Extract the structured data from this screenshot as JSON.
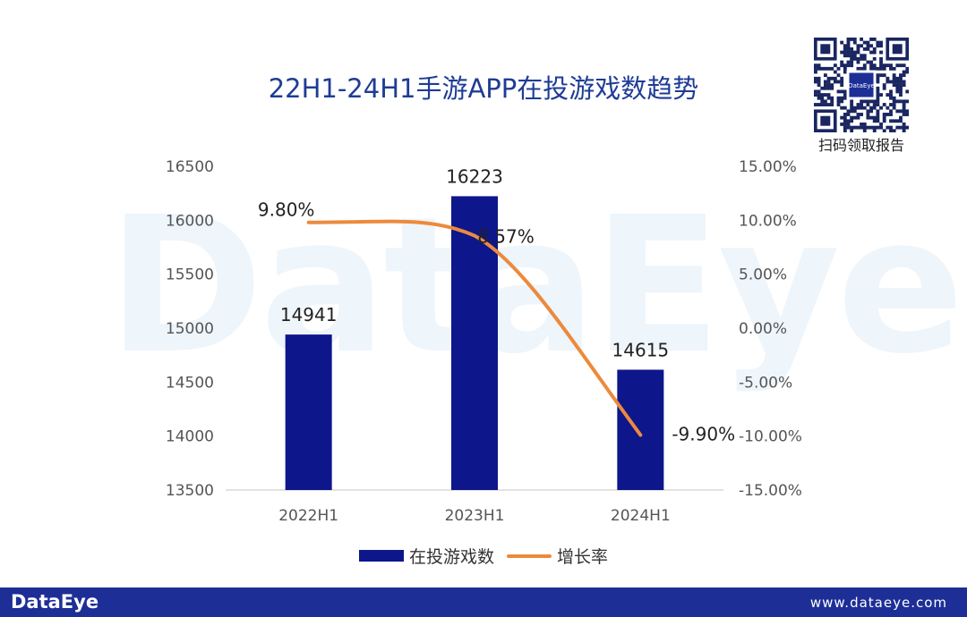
{
  "watermark": "DataEye",
  "qr": {
    "label": "DataEye",
    "caption": "扫码领取报告"
  },
  "footer": {
    "brand": "DataEye",
    "url": "www.dataeye.com"
  },
  "colors": {
    "bar": "#0d168b",
    "line": "#ec8a3c",
    "title": "#1f3c95",
    "footer": "#1d2f96"
  },
  "chart_data": {
    "type": "bar",
    "title": "22H1-24H1手游APP在投游戏数趋势",
    "categories": [
      "2022H1",
      "2023H1",
      "2024H1"
    ],
    "series": [
      {
        "name": "在投游戏数",
        "type": "bar",
        "axis": "left",
        "values": [
          14941,
          16223,
          14615
        ],
        "labels": [
          "14941",
          "16223",
          "14615"
        ]
      },
      {
        "name": "增长率",
        "type": "line",
        "axis": "right",
        "smooth": true,
        "values": [
          9.8,
          8.57,
          -9.9
        ],
        "labels": [
          "9.80%",
          "8.57%",
          "-9.90%"
        ]
      }
    ],
    "y_left": {
      "min": 13500,
      "max": 16500,
      "ticks": [
        "16500",
        "16000",
        "15500",
        "15000",
        "14500",
        "14000",
        "13500"
      ]
    },
    "y_right": {
      "min": -15,
      "max": 15,
      "ticks": [
        "15.00%",
        "10.00%",
        "5.00%",
        "0.00%",
        "-5.00%",
        "-10.00%",
        "-15.00%"
      ]
    },
    "legend": [
      "在投游戏数",
      "增长率"
    ],
    "legend_position": "bottom",
    "grid": false
  }
}
